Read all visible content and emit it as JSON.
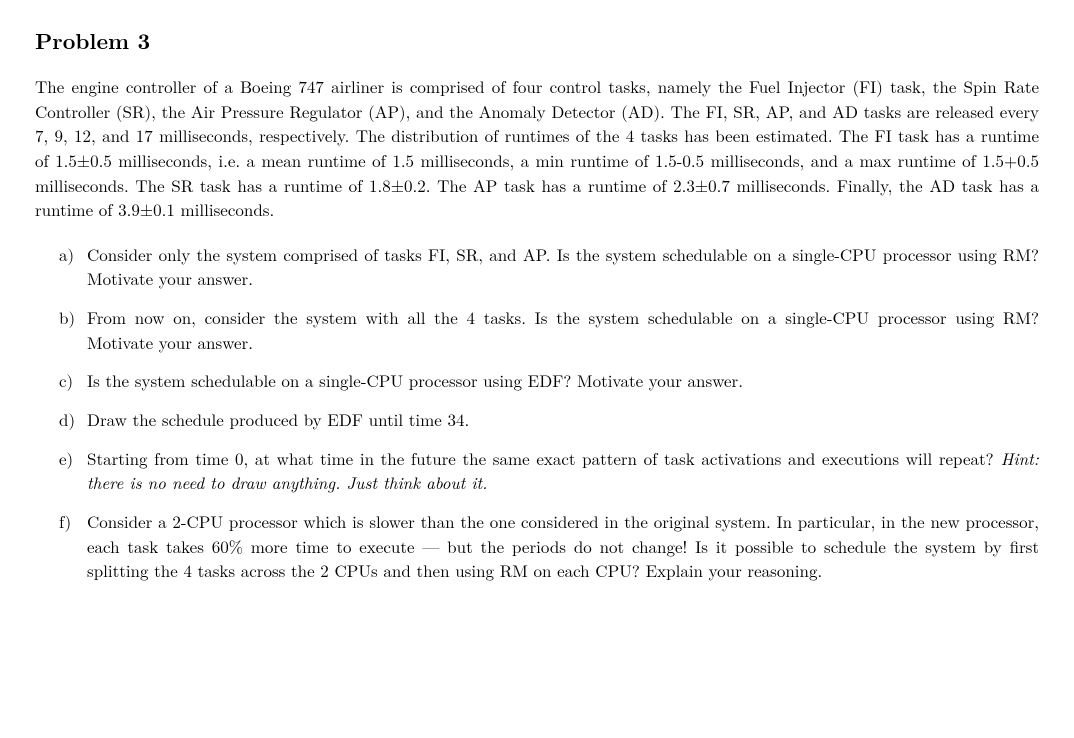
{
  "title": "Problem 3",
  "body": "The engine controller of a Boeing 747 airliner is comprised of four control tasks, namely the Fuel Injector (FI) task, the Spin Rate Controller (SR), the Air Pressure Regulator (AP), and the Anomaly Detector (AD). The FI, SR, AP, and AD tasks are released every 7, 9, 12, and 17 milliseconds, respectively. The distribution of runtimes of the 4 tasks has been estimated. The FI task has a runtime of 1.5±0.5 milliseconds, i.e. a mean runtime of 1.5 milliseconds, a min runtime of 1.5-0.5 milliseconds, and a max runtime of 1.5+0.5 milliseconds. The SR task has a runtime of 1.8±0.2. The AP task has a runtime of 2.3±0.7 milliseconds. Finally, the AD task has a runtime of 3.9±0.1 milliseconds.",
  "items": [
    {
      "marker": "a)",
      "text": "Consider only the system comprised of tasks FI, SR, and AP. Is the system schedulable on a single-CPU processor using RM? Motivate your answer."
    },
    {
      "marker": "b)",
      "text": "From now on, consider the system with all the 4 tasks. Is the system schedulable on a single-CPU processor using RM? Motivate your answer."
    },
    {
      "marker": "c)",
      "text": "Is the system schedulable on a single-CPU processor using EDF? Motivate your answer."
    },
    {
      "marker": "d)",
      "text": "Draw the schedule produced by EDF until time 34."
    },
    {
      "marker": "e)",
      "text": "Starting from time 0, at what time in the future the same exact pattern of task activations and executions will repeat?",
      "hint": " Hint: there is no need to draw anything. Just think about it."
    },
    {
      "marker": "f)",
      "text": "Consider a 2-CPU processor which is slower than the one considered in the original system. In particular, in the new processor, each task takes 60% more time to execute — but the periods do not change! Is it possible to schedule the system by first splitting the 4 tasks across the 2 CPUs and then using RM on each CPU? Explain your reasoning."
    }
  ]
}
